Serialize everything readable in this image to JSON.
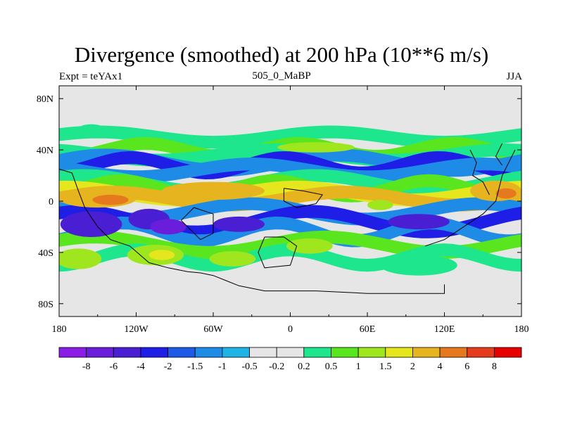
{
  "chart_data": {
    "type": "heatmap",
    "title": "Divergence (smoothed) at 200 hPa (10**6 m/s)",
    "left_label": "Expt = teYAx1",
    "center_label": "505_0_MaBP",
    "right_label": "JJA",
    "x_ticks": [
      "180",
      "120W",
      "60W",
      "0",
      "60E",
      "120E",
      "180"
    ],
    "x_tick_values": [
      -180,
      -120,
      -60,
      0,
      60,
      120,
      180
    ],
    "y_ticks": [
      "80N",
      "40N",
      "0",
      "40S",
      "80S"
    ],
    "y_tick_values": [
      80,
      40,
      0,
      -40,
      -80
    ],
    "xlim": [
      -180,
      180
    ],
    "ylim": [
      -90,
      90
    ],
    "colorbar": {
      "labels": [
        "-8",
        "-6",
        "-4",
        "-2",
        "-1.5",
        "-1",
        "-0.5",
        "-0.2",
        "0.2",
        "0.5",
        "1",
        "1.5",
        "2",
        "4",
        "6",
        "8"
      ],
      "colors": [
        "#8a1ee6",
        "#6a1edc",
        "#4a1ed2",
        "#1e1ee6",
        "#1e5ae6",
        "#1e8ce6",
        "#1eb4e6",
        "#e6e6e6",
        "#e6e6e6",
        "#1ee68c",
        "#5ae61e",
        "#a0e61e",
        "#e6e61e",
        "#e6b41e",
        "#e6781e",
        "#e63c1e",
        "#e60000"
      ]
    },
    "bands": [
      {
        "lat": 50,
        "amp": 4,
        "freq": 2,
        "phase": 0.5,
        "level": 0.5
      },
      {
        "lat": 40,
        "amp": 5,
        "freq": 3,
        "phase": 1.2,
        "level": 1
      },
      {
        "lat": 36,
        "amp": 4,
        "freq": 2,
        "phase": 2.0,
        "level": 0.5
      },
      {
        "lat": 30,
        "amp": 6,
        "freq": 2,
        "phase": 0.3,
        "level": -1
      },
      {
        "lat": 28,
        "amp": 6,
        "freq": 3,
        "phase": 1.8,
        "level": -2
      },
      {
        "lat": 24,
        "amp": 5,
        "freq": 2,
        "phase": 2.6,
        "level": -1
      },
      {
        "lat": 14,
        "amp": 6,
        "freq": 2,
        "phase": 0.9,
        "level": 0.5
      },
      {
        "lat": 10,
        "amp": 6,
        "freq": 3,
        "phase": 2.2,
        "level": 1
      },
      {
        "lat": 6,
        "amp": 5,
        "freq": 2,
        "phase": 1.4,
        "level": 2
      },
      {
        "lat": 2,
        "amp": 5,
        "freq": 2,
        "phase": 0.1,
        "level": 4
      },
      {
        "lat": -8,
        "amp": 6,
        "freq": 2,
        "phase": 2.7,
        "level": -1
      },
      {
        "lat": -16,
        "amp": 8,
        "freq": 2,
        "phase": 1.0,
        "level": -2
      },
      {
        "lat": -24,
        "amp": 7,
        "freq": 3,
        "phase": 2.1,
        "level": -1
      },
      {
        "lat": -34,
        "amp": 6,
        "freq": 2,
        "phase": 0.6,
        "level": 1
      },
      {
        "lat": -44,
        "amp": 6,
        "freq": 3,
        "phase": 1.6,
        "level": 0.5
      }
    ],
    "blobs": [
      {
        "lon": -150,
        "lat": 2,
        "rx": 30,
        "ry": 7,
        "level": 4
      },
      {
        "lon": -140,
        "lat": 1,
        "rx": 14,
        "ry": 4,
        "level": 6
      },
      {
        "lon": -60,
        "lat": 8,
        "rx": 40,
        "ry": 7,
        "level": 4
      },
      {
        "lon": 160,
        "lat": 8,
        "rx": 20,
        "ry": 8,
        "level": 4
      },
      {
        "lon": 168,
        "lat": 6,
        "rx": 8,
        "ry": 4,
        "level": 6
      },
      {
        "lon": -155,
        "lat": -18,
        "rx": 24,
        "ry": 10,
        "level": -4
      },
      {
        "lon": -110,
        "lat": -14,
        "rx": 16,
        "ry": 8,
        "level": -4
      },
      {
        "lon": -95,
        "lat": -20,
        "rx": 14,
        "ry": 6,
        "level": -6
      },
      {
        "lon": -40,
        "lat": -18,
        "rx": 20,
        "ry": 6,
        "level": -4
      },
      {
        "lon": 100,
        "lat": -16,
        "rx": 24,
        "ry": 6,
        "level": -4
      },
      {
        "lon": -165,
        "lat": -45,
        "rx": 18,
        "ry": 8,
        "level": 1.5
      },
      {
        "lon": -105,
        "lat": -42,
        "rx": 22,
        "ry": 8,
        "level": 1.5
      },
      {
        "lon": -100,
        "lat": -42,
        "rx": 10,
        "ry": 4,
        "level": 2
      },
      {
        "lon": -45,
        "lat": -45,
        "rx": 18,
        "ry": 6,
        "level": 1.5
      },
      {
        "lon": 15,
        "lat": -35,
        "rx": 18,
        "ry": 6,
        "level": 1.5
      },
      {
        "lon": 100,
        "lat": -50,
        "rx": 30,
        "ry": 8,
        "level": 0.5
      },
      {
        "lon": 20,
        "lat": 42,
        "rx": 30,
        "ry": 4,
        "level": 1.5
      },
      {
        "lon": -155,
        "lat": 58,
        "rx": 8,
        "ry": 2,
        "level": 0.5
      },
      {
        "lon": 70,
        "lat": -3,
        "rx": 10,
        "ry": 4,
        "level": 1.5
      }
    ]
  }
}
